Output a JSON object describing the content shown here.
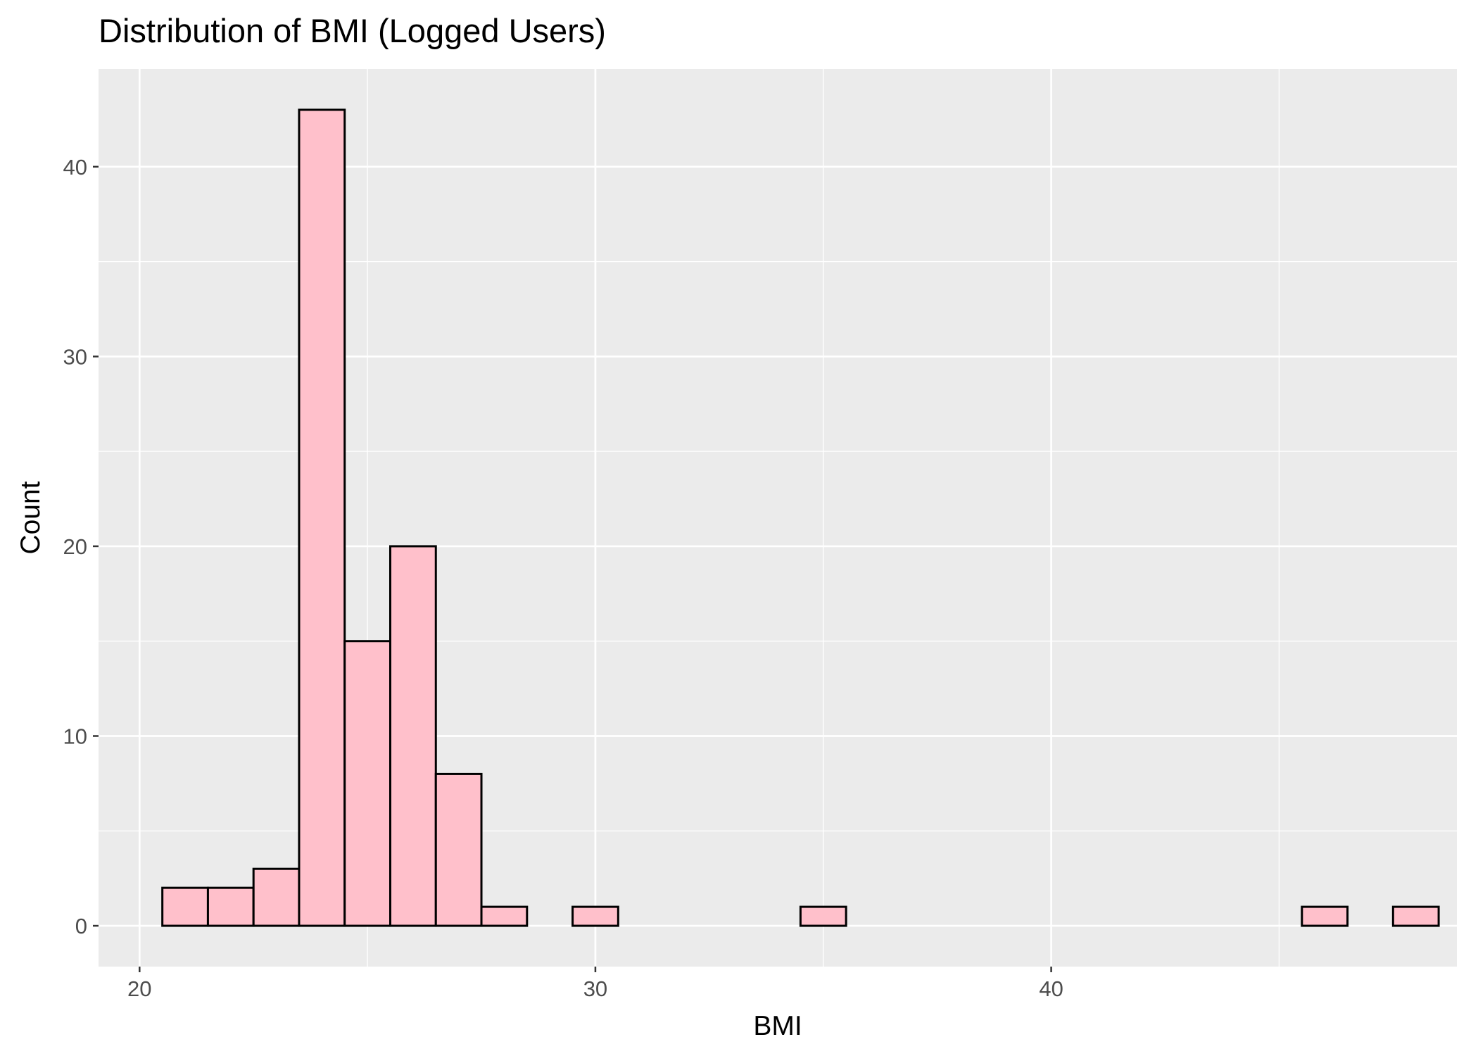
{
  "chart_data": {
    "type": "bar",
    "title": "Distribution of BMI (Logged Users)",
    "xlabel": "BMI",
    "ylabel": "Count",
    "xlim": [
      19.1,
      48.9
    ],
    "ylim": [
      -2.15,
      45.15
    ],
    "x_ticks": [
      20,
      30,
      40
    ],
    "x_tick_labels": [
      "20",
      "30",
      "40"
    ],
    "x_minor_ticks": [
      25,
      35,
      45
    ],
    "y_ticks": [
      0,
      10,
      20,
      30,
      40
    ],
    "y_tick_labels": [
      "0",
      "10",
      "20",
      "30",
      "40"
    ],
    "y_minor_ticks": [
      5,
      15,
      25,
      35
    ],
    "grid": true,
    "legend": "none",
    "bin_width": 1,
    "bins": [
      {
        "start": 20.5,
        "end": 21.5,
        "count": 2
      },
      {
        "start": 21.5,
        "end": 22.5,
        "count": 2
      },
      {
        "start": 22.5,
        "end": 23.5,
        "count": 3
      },
      {
        "start": 23.5,
        "end": 24.5,
        "count": 43
      },
      {
        "start": 24.5,
        "end": 25.5,
        "count": 15
      },
      {
        "start": 25.5,
        "end": 26.5,
        "count": 20
      },
      {
        "start": 26.5,
        "end": 27.5,
        "count": 8
      },
      {
        "start": 27.5,
        "end": 28.5,
        "count": 1
      },
      {
        "start": 28.5,
        "end": 29.5,
        "count": 0
      },
      {
        "start": 29.5,
        "end": 30.5,
        "count": 1
      },
      {
        "start": 30.5,
        "end": 31.5,
        "count": 0
      },
      {
        "start": 31.5,
        "end": 32.5,
        "count": 0
      },
      {
        "start": 32.5,
        "end": 33.5,
        "count": 0
      },
      {
        "start": 33.5,
        "end": 34.5,
        "count": 0
      },
      {
        "start": 34.5,
        "end": 35.5,
        "count": 1
      },
      {
        "start": 35.5,
        "end": 36.5,
        "count": 0
      },
      {
        "start": 36.5,
        "end": 37.5,
        "count": 0
      },
      {
        "start": 37.5,
        "end": 38.5,
        "count": 0
      },
      {
        "start": 38.5,
        "end": 39.5,
        "count": 0
      },
      {
        "start": 39.5,
        "end": 40.5,
        "count": 0
      },
      {
        "start": 40.5,
        "end": 41.5,
        "count": 0
      },
      {
        "start": 41.5,
        "end": 42.5,
        "count": 0
      },
      {
        "start": 42.5,
        "end": 43.5,
        "count": 0
      },
      {
        "start": 43.5,
        "end": 44.5,
        "count": 0
      },
      {
        "start": 44.5,
        "end": 45.5,
        "count": 0
      },
      {
        "start": 45.5,
        "end": 46.5,
        "count": 1
      },
      {
        "start": 46.5,
        "end": 47.5,
        "count": 0
      },
      {
        "start": 47.5,
        "end": 48.5,
        "count": 1
      }
    ],
    "colors": {
      "bar_fill": "#ffc0cb",
      "bar_outline": "#000000",
      "panel_background": "#ebebeb",
      "grid": "#ffffff",
      "tick_label": "#4d4d4d",
      "tick_mark": "#333333"
    }
  }
}
